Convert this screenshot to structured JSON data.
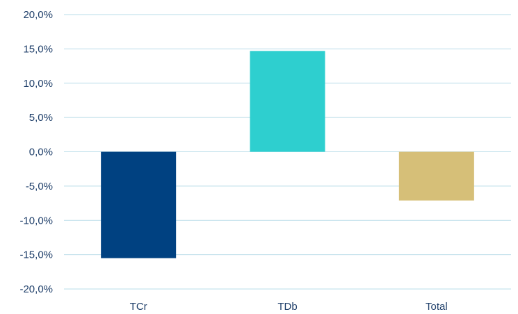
{
  "chart_data": {
    "type": "bar",
    "categories": [
      "TCr",
      "TDb",
      "Total"
    ],
    "values": [
      -15.5,
      14.7,
      -7.1
    ],
    "colors": [
      "#004181",
      "#2ecfcf",
      "#d6bf78"
    ],
    "ylim": [
      -20,
      20
    ],
    "yticks": [
      20,
      15,
      10,
      5,
      0,
      -5,
      -10,
      -15,
      -20
    ],
    "ytick_labels": [
      "20,0%",
      "15,0%",
      "10,0%",
      "5,0%",
      "0,0%",
      "-5,0%",
      "-10,0%",
      "-15,0%",
      "-20,0%"
    ],
    "grid": true,
    "gridline_color": "#b9dce8",
    "label_color": "#1f3f6a",
    "title": "",
    "xlabel": "",
    "ylabel": ""
  }
}
